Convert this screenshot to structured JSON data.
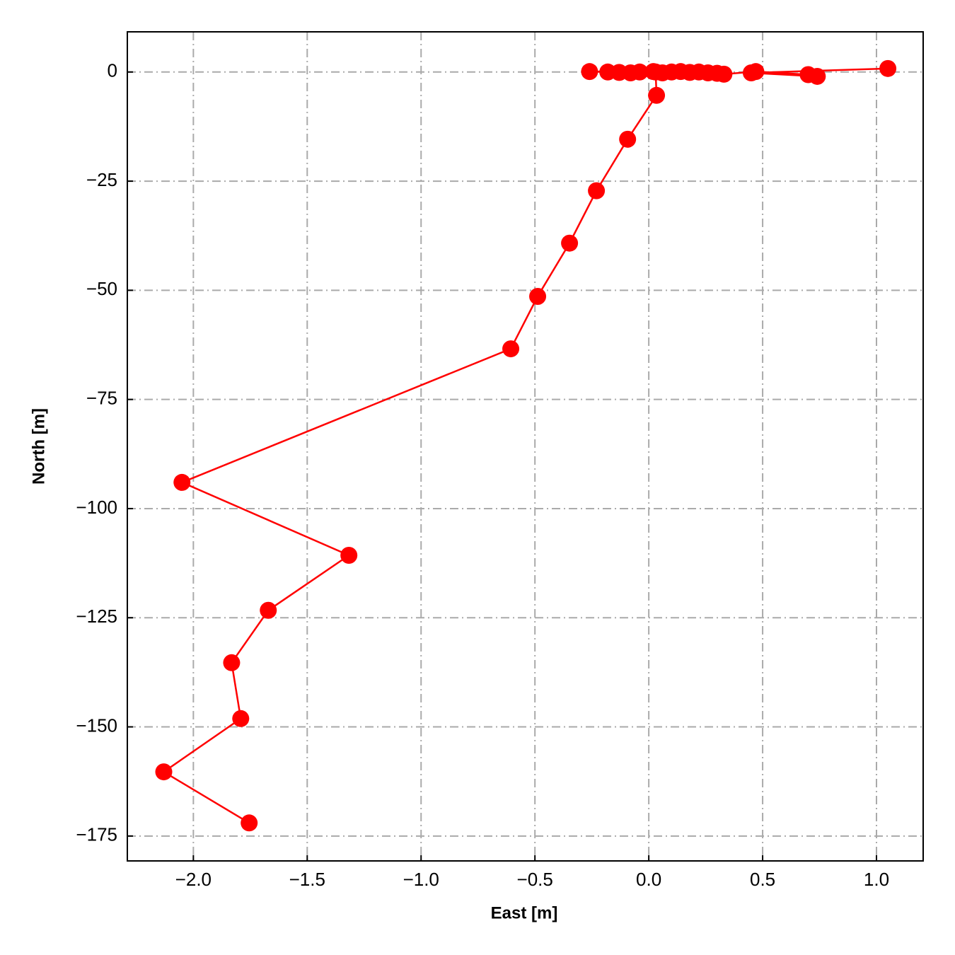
{
  "chart_data": {
    "type": "line",
    "xlabel": "East [m]",
    "ylabel": "North [m]",
    "x": [
      1.05,
      0.45,
      0.74,
      0.7,
      0.47,
      0.33,
      0.3,
      0.26,
      0.22,
      0.18,
      0.14,
      0.1,
      0.06,
      0.02,
      -0.04,
      -0.08,
      -0.13,
      -0.18,
      -0.26,
      0.03,
      0.034,
      -0.093,
      -0.23,
      -0.348,
      -0.488,
      -0.606,
      -2.05,
      -1.317,
      -1.671,
      -1.832,
      -1.792,
      -2.13,
      -1.755
    ],
    "values": [
      0.8,
      -0.2,
      -1.0,
      -0.6,
      0.1,
      -0.5,
      -0.3,
      -0.2,
      0,
      -0.1,
      0.1,
      0,
      -0.2,
      0.1,
      0,
      -0.2,
      -0.1,
      0,
      0.1,
      0,
      -5.35,
      -15.4,
      -27.2,
      -39.2,
      -51.4,
      -63.4,
      -94.0,
      -110.7,
      -123.3,
      -135.3,
      -148.1,
      -160.3,
      -172.0
    ],
    "color": "#ff0000",
    "xlim": [
      -2.29,
      1.205
    ],
    "ylim": [
      -180.7,
      9.2
    ],
    "xticks": [
      {
        "value": -2,
        "label": "−2.0"
      },
      {
        "value": -1.5,
        "label": "−1.5"
      },
      {
        "value": -1,
        "label": "−1.0"
      },
      {
        "value": -0.5,
        "label": "−0.5"
      },
      {
        "value": 0,
        "label": "0.0"
      },
      0.5,
      {
        "value": 1,
        "label": "1.0"
      }
    ],
    "yticks": [
      0,
      {
        "value": -25,
        "label": "−25"
      },
      {
        "value": -50,
        "label": "−50"
      },
      {
        "value": -75,
        "label": "−75"
      },
      {
        "value": -100,
        "label": "−100"
      },
      {
        "value": -125,
        "label": "−125"
      },
      {
        "value": -150,
        "label": "−150"
      },
      {
        "value": -175,
        "label": "−175"
      }
    ],
    "grid": true
  }
}
